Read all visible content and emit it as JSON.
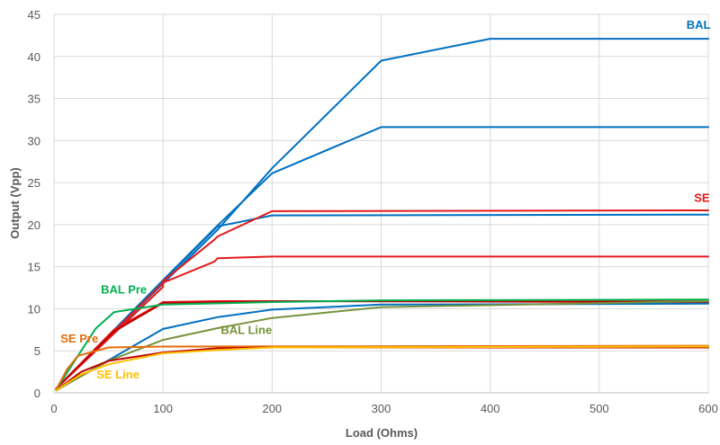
{
  "chart_data": {
    "type": "line",
    "xlabel": "Load (Ohms)",
    "ylabel": "Output (Vpp)",
    "xlim": [
      0,
      600
    ],
    "ylim": [
      0,
      45
    ],
    "xticks": [
      0,
      100,
      200,
      300,
      400,
      500,
      600
    ],
    "yticks": [
      0,
      5,
      10,
      15,
      20,
      25,
      30,
      35,
      40,
      45
    ],
    "grid": true,
    "legend": "none",
    "series": [
      {
        "color": "#0070c0",
        "x": [
          2,
          100,
          150,
          200,
          300,
          400,
          600
        ],
        "y": [
          0.5,
          13.0,
          19.4,
          26.7,
          39.5,
          42.1,
          42.1
        ]
      },
      {
        "color": "#0070c0",
        "x": [
          2,
          100,
          150,
          200,
          300,
          400,
          600
        ],
        "y": [
          0.5,
          13.4,
          19.9,
          26.1,
          31.6,
          31.6,
          31.6
        ]
      },
      {
        "color": "#0070c0",
        "x": [
          2,
          100,
          150,
          200,
          600
        ],
        "y": [
          0.5,
          13.3,
          19.8,
          21.1,
          21.2
        ]
      },
      {
        "color": "#e31a1c",
        "x": [
          2,
          100,
          100,
          147,
          150,
          200,
          600
        ],
        "y": [
          0.5,
          12.6,
          13.3,
          18.2,
          18.6,
          21.6,
          21.7
        ]
      },
      {
        "color": "#e31a1c",
        "x": [
          2,
          100,
          147,
          150,
          200,
          600
        ],
        "y": [
          0.5,
          13.1,
          15.6,
          16.0,
          16.2,
          16.2
        ]
      },
      {
        "color": "#e31a1c",
        "x": [
          2,
          55,
          100,
          150,
          200,
          600
        ],
        "y": [
          0.5,
          7.5,
          10.8,
          10.9,
          10.9,
          10.9
        ]
      },
      {
        "color": "#c00000",
        "x": [
          2,
          55,
          100,
          150,
          200,
          600
        ],
        "y": [
          0.5,
          7.3,
          10.7,
          10.8,
          10.9,
          10.8
        ]
      },
      {
        "color": "#0070c0",
        "x": [
          2,
          100,
          150,
          200,
          300,
          600
        ],
        "y": [
          0.3,
          7.6,
          9.0,
          9.9,
          10.5,
          10.6
        ]
      },
      {
        "color": "#00b050",
        "x": [
          2,
          20,
          38,
          55,
          100,
          200,
          300,
          600
        ],
        "y": [
          0.4,
          4.0,
          7.6,
          9.6,
          10.5,
          10.8,
          11.0,
          11.1
        ]
      },
      {
        "color": "#77933c",
        "x": [
          2,
          50,
          100,
          150,
          200,
          300,
          600
        ],
        "y": [
          0.3,
          3.8,
          6.3,
          7.7,
          8.9,
          10.2,
          10.9
        ]
      },
      {
        "color": "#e36c09",
        "x": [
          2,
          12,
          22,
          50,
          100,
          600
        ],
        "y": [
          0.4,
          2.8,
          4.4,
          5.4,
          5.5,
          5.6
        ]
      },
      {
        "color": "#c00000",
        "x": [
          2,
          25,
          50,
          100,
          150,
          200,
          600
        ],
        "y": [
          0.3,
          2.5,
          3.8,
          4.8,
          5.3,
          5.4,
          5.4
        ]
      },
      {
        "color": "#ffc000",
        "x": [
          2,
          25,
          50,
          100,
          150,
          200,
          600
        ],
        "y": [
          0.3,
          2.2,
          3.4,
          4.7,
          5.1,
          5.4,
          5.5
        ]
      }
    ],
    "annotations": [
      {
        "text": "BAL",
        "color": "#0070c0",
        "x": 580,
        "y": 43.3
      },
      {
        "text": "SE",
        "color": "#e31a1c",
        "x": 587,
        "y": 22.7
      },
      {
        "text": "BAL Pre",
        "color": "#00b050",
        "x": 43,
        "y": 11.8
      },
      {
        "text": "SE Pre",
        "color": "#e36c09",
        "x": 6,
        "y": 6.0
      },
      {
        "text": "BAL Line",
        "color": "#77933c",
        "x": 153,
        "y": 7.0
      },
      {
        "text": "SE Line",
        "color": "#ffc000",
        "x": 39,
        "y": 1.7
      }
    ]
  }
}
